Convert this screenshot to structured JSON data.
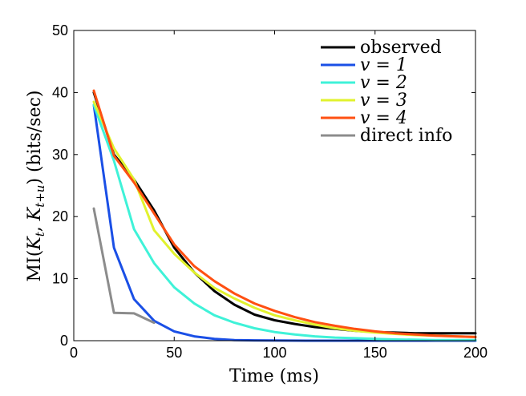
{
  "chart_data": {
    "type": "line",
    "xlabel": "Time (ms)",
    "ylabel": "MI(K_t, K_{t+u})  (bits/sec)",
    "ylabel_parts": {
      "prefix": "MI(",
      "k1": "K",
      "k1_sub": "t",
      "sep": ", ",
      "k2": "K",
      "k2_sub": "t+u",
      "suffix": ")  (bits/sec)"
    },
    "xlim": [
      0,
      200
    ],
    "ylim": [
      0,
      50
    ],
    "xticks": [
      0,
      50,
      100,
      150,
      200
    ],
    "yticks": [
      0,
      10,
      20,
      30,
      40,
      50
    ],
    "xtick_labels": [
      "0",
      "50",
      "100",
      "150",
      "200"
    ],
    "ytick_labels": [
      "0",
      "10",
      "20",
      "30",
      "40",
      "50"
    ],
    "grid": false,
    "legend_position": "top-right",
    "series": [
      {
        "name": "observed",
        "color": "#000000",
        "x": [
          10,
          20,
          30,
          40,
          50,
          60,
          70,
          80,
          90,
          100,
          110,
          120,
          130,
          140,
          150,
          160,
          170,
          180,
          190,
          200
        ],
        "y": [
          40.0,
          30.0,
          26.0,
          21.0,
          15.0,
          11.0,
          8.0,
          5.8,
          4.2,
          3.3,
          2.7,
          2.2,
          1.9,
          1.6,
          1.4,
          1.3,
          1.2,
          1.2,
          1.2,
          1.2
        ]
      },
      {
        "name": "v = 1",
        "color": "#1a4fe6",
        "x": [
          10,
          20,
          30,
          40,
          50,
          60,
          70,
          80,
          90,
          100,
          120,
          150,
          200
        ],
        "y": [
          38.0,
          15.0,
          6.7,
          3.2,
          1.5,
          0.7,
          0.3,
          0.1,
          0.05,
          0.02,
          0.0,
          0.0,
          0.0
        ]
      },
      {
        "name": "v = 2",
        "color": "#3ff2d8",
        "x": [
          10,
          20,
          30,
          40,
          50,
          60,
          70,
          80,
          90,
          100,
          110,
          120,
          130,
          140,
          150,
          160,
          170,
          180,
          190,
          200
        ],
        "y": [
          38.0,
          29.0,
          18.0,
          12.5,
          8.6,
          6.0,
          4.1,
          2.9,
          2.0,
          1.4,
          1.0,
          0.7,
          0.5,
          0.4,
          0.3,
          0.2,
          0.15,
          0.1,
          0.1,
          0.1
        ]
      },
      {
        "name": "v = 3",
        "color": "#e1f22e",
        "x": [
          10,
          20,
          30,
          40,
          50,
          60,
          70,
          80,
          90,
          100,
          110,
          120,
          130,
          140,
          150,
          160,
          170,
          180,
          190,
          200
        ],
        "y": [
          38.5,
          31.0,
          26.0,
          17.8,
          14.0,
          11.0,
          8.5,
          6.8,
          5.3,
          4.1,
          3.3,
          2.6,
          2.0,
          1.6,
          1.3,
          1.1,
          0.9,
          0.8,
          0.7,
          0.6
        ]
      },
      {
        "name": "v = 4",
        "color": "#ff5012",
        "x": [
          10,
          20,
          30,
          40,
          50,
          60,
          70,
          80,
          90,
          100,
          110,
          120,
          130,
          140,
          150,
          160,
          170,
          180,
          190,
          200
        ],
        "y": [
          40.3,
          29.8,
          25.5,
          20.5,
          15.5,
          12.0,
          9.6,
          7.6,
          6.0,
          4.8,
          3.8,
          3.0,
          2.4,
          1.9,
          1.5,
          1.2,
          1.0,
          0.8,
          0.7,
          0.6
        ]
      },
      {
        "name": "direct info",
        "color": "#8c8c8c",
        "x": [
          10,
          20,
          30,
          40
        ],
        "y": [
          21.3,
          4.5,
          4.4,
          2.9
        ]
      }
    ],
    "legend": [
      {
        "label": "observed",
        "math": false
      },
      {
        "label": "v = 1",
        "math": true
      },
      {
        "label": "v = 2",
        "math": true
      },
      {
        "label": "v = 3",
        "math": true
      },
      {
        "label": "v = 4",
        "math": true
      },
      {
        "label": "direct info",
        "math": false
      }
    ]
  }
}
